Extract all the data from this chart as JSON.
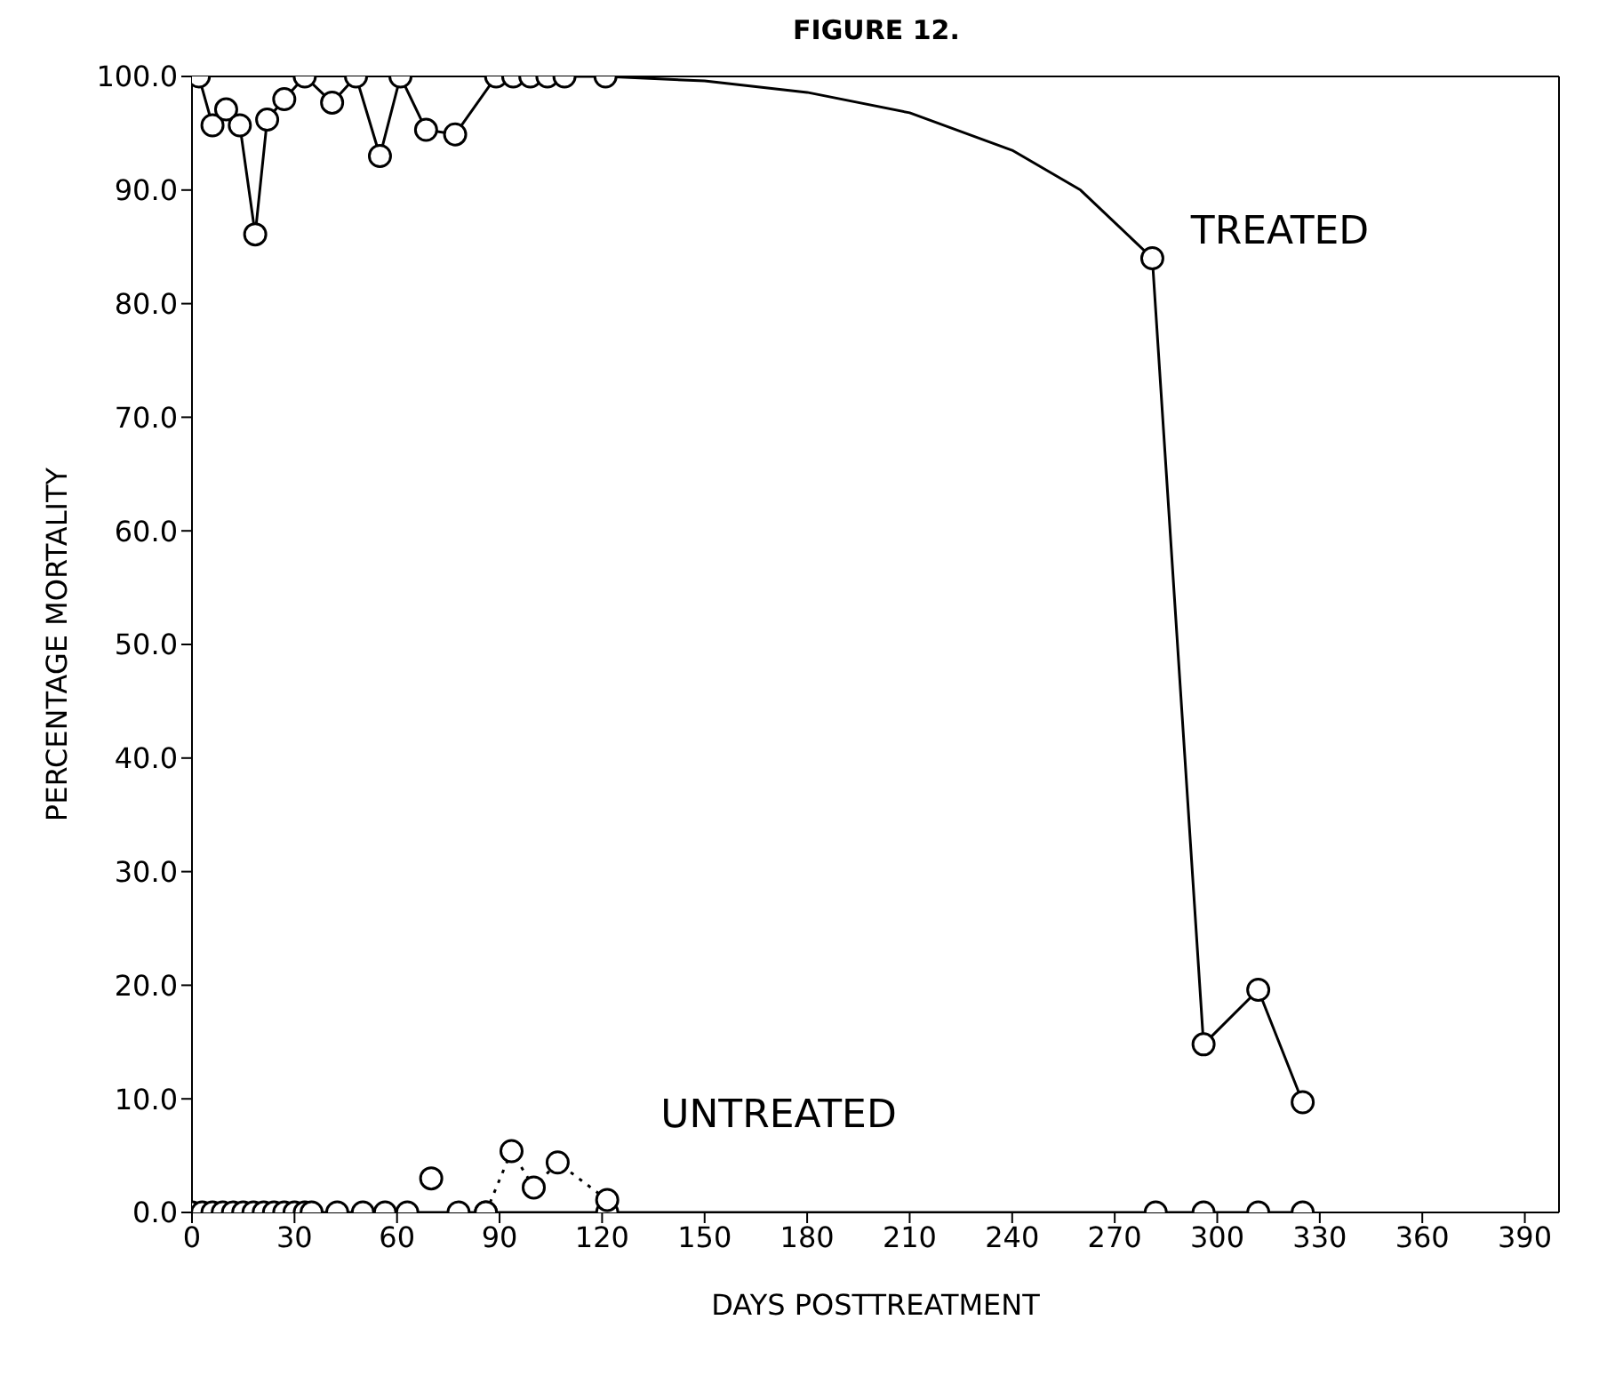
{
  "chart_data": {
    "type": "line",
    "title": "FIGURE 12.",
    "xlabel": "DAYS POSTTREATMENT",
    "ylabel": "PERCENTAGE MORTALITY",
    "annotations": [
      "TREATED",
      "UNTREATED"
    ],
    "xlim": [
      0,
      400
    ],
    "xticks": [
      0,
      30,
      60,
      90,
      120,
      150,
      180,
      210,
      240,
      270,
      300,
      330,
      360,
      390
    ],
    "ylim": [
      0,
      100
    ],
    "yticks": [
      {
        "value": 0,
        "label": "0.0"
      },
      {
        "value": 10,
        "label": "10.0"
      },
      {
        "value": 20,
        "label": "20.0"
      },
      {
        "value": 30,
        "label": "30.0"
      },
      {
        "value": 40,
        "label": "40.0"
      },
      {
        "value": 50,
        "label": "50.0"
      },
      {
        "value": 60,
        "label": "60.0"
      },
      {
        "value": 70,
        "label": "70.0"
      },
      {
        "value": 80,
        "label": "80.0"
      },
      {
        "value": 90,
        "label": "90.0"
      },
      {
        "value": 100,
        "label": "100.0"
      }
    ],
    "grid": false,
    "legend": false,
    "marker": "circle",
    "line_style": "solid",
    "series": [
      {
        "color": "#000000",
        "x": [
          2,
          6,
          10,
          14,
          18.5,
          22,
          27,
          33,
          41,
          48,
          55,
          61,
          68.5,
          77,
          89,
          94,
          99,
          104,
          109,
          121
        ],
        "values": [
          100,
          95.7,
          97.1,
          95.7,
          86.1,
          96.2,
          98,
          100,
          97.7,
          100,
          93,
          100,
          95.3,
          94.9,
          100,
          100,
          100,
          100,
          100,
          100
        ]
      },
      {
        "color": "#000000",
        "marker": "none",
        "x": [
          121,
          150,
          180,
          210,
          240,
          260,
          281
        ],
        "values": [
          100,
          99.6,
          98.6,
          96.8,
          93.5,
          90,
          84
        ]
      },
      {
        "color": "#000000",
        "x": [
          281,
          296,
          312,
          325
        ],
        "values": [
          84,
          14.8,
          19.6,
          9.7
        ]
      },
      {
        "color": "#000000",
        "x": [
          0,
          3,
          6,
          9,
          12,
          15,
          18,
          21,
          24,
          27,
          30,
          33,
          35,
          42.5,
          50,
          56.5,
          63,
          78,
          86,
          121.5,
          282,
          296,
          312,
          325
        ],
        "values": [
          0,
          0,
          0,
          0,
          0,
          0,
          0,
          0,
          0,
          0,
          0,
          0,
          0,
          0,
          0,
          0,
          0,
          0,
          0,
          0,
          0,
          0,
          0,
          0
        ]
      },
      {
        "color": "#000000",
        "line_style": "dotted",
        "x": [
          86,
          93.5,
          100,
          107,
          121.5
        ],
        "values": [
          0,
          5.4,
          2.2,
          4.4,
          1.1
        ]
      },
      {
        "type": "scatter",
        "color": "#000000",
        "x": [
          70
        ],
        "values": [
          3
        ]
      }
    ]
  }
}
